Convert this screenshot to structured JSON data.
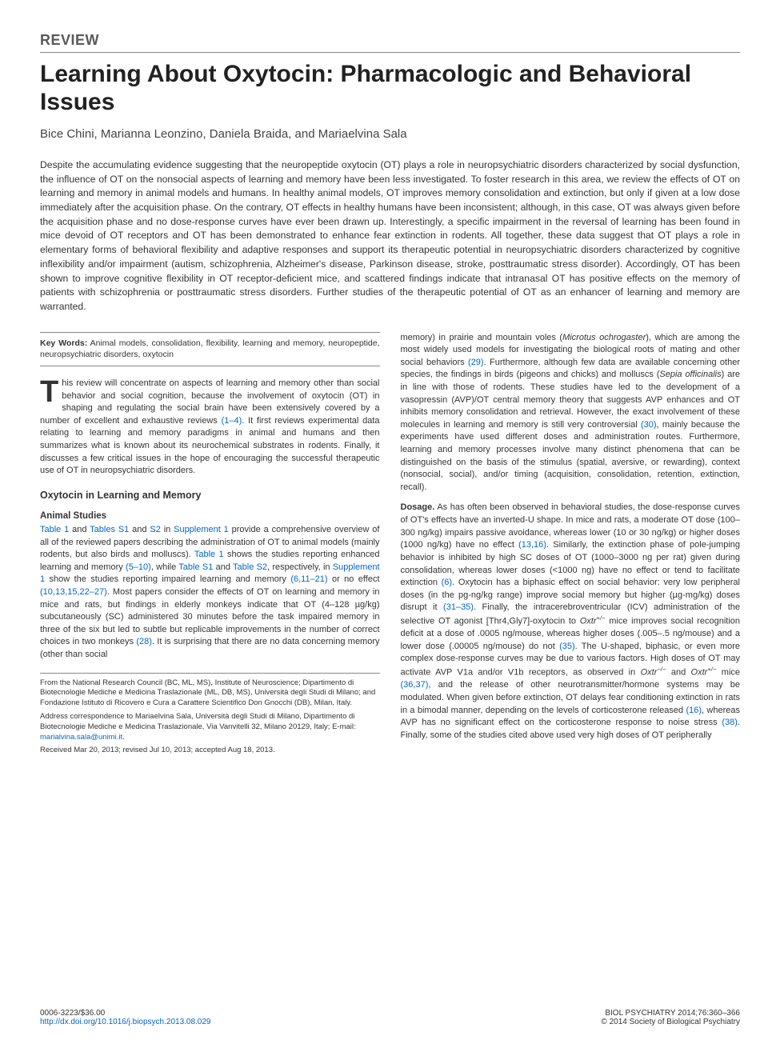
{
  "article_type": "Review",
  "title": "Learning About Oxytocin: Pharmacologic and Behavioral Issues",
  "authors": "Bice Chini, Marianna Leonzino, Daniela Braida, and Mariaelvina Sala",
  "abstract": "Despite the accumulating evidence suggesting that the neuropeptide oxytocin (OT) plays a role in neuropsychiatric disorders characterized by social dysfunction, the influence of OT on the nonsocial aspects of learning and memory have been less investigated. To foster research in this area, we review the effects of OT on learning and memory in animal models and humans. In healthy animal models, OT improves memory consolidation and extinction, but only if given at a low dose immediately after the acquisition phase. On the contrary, OT effects in healthy humans have been inconsistent; although, in this case, OT was always given before the acquisition phase and no dose-response curves have ever been drawn up. Interestingly, a specific impairment in the reversal of learning has been found in mice devoid of OT receptors and OT has been demonstrated to enhance fear extinction in rodents. All together, these data suggest that OT plays a role in elementary forms of behavioral flexibility and adaptive responses and support its therapeutic potential in neuropsychiatric disorders characterized by cognitive inflexibility and/or impairment (autism, schizophrenia, Alzheimer's disease, Parkinson disease, stroke, posttraumatic stress disorder). Accordingly, OT has been shown to improve cognitive flexibility in OT receptor-deficient mice, and scattered findings indicate that intranasal OT has positive effects on the memory of patients with schizophrenia or posttraumatic stress disorders. Further studies of the therapeutic potential of OT as an enhancer of learning and memory are warranted.",
  "keywords_label": "Key Words:",
  "keywords": "Animal models, consolidation, flexibility, learning and memory, neuropeptide, neuropsychiatric disorders, oxytocin",
  "col1": {
    "intro_first": "T",
    "intro_rest": "his review will concentrate on aspects of learning and memory other than social behavior and social cognition, because the involvement of oxytocin (OT) in shaping and regulating the social brain have been extensively covered by a number of excellent and exhaustive reviews ",
    "intro_ref1": "(1–4)",
    "intro_tail": ". It first reviews experimental data relating to learning and memory paradigms in animal and humans and then summarizes what is known about its neurochemical substrates in rodents. Finally, it discusses a few critical issues in the hope of encouraging the successful therapeutic use of OT in neuropsychiatric disorders.",
    "h1": "Oxytocin in Learning and Memory",
    "h2": "Animal Studies",
    "p2a": "Table 1",
    "p2b": " and ",
    "p2c": "Tables S1",
    "p2d": " and ",
    "p2e": "S2",
    "p2f": " in ",
    "p2g": "Supplement 1",
    "p2h": " provide a comprehensive overview of all of the reviewed papers describing the administration of OT to animal models (mainly rodents, but also birds and molluscs). ",
    "p2i": "Table 1",
    "p2j": " shows the studies reporting enhanced learning and memory ",
    "p2k": "(5–10)",
    "p2l": ", while ",
    "p2m": "Table S1",
    "p2n": " and ",
    "p2o": "Table S2",
    "p2p": ", respectively, in ",
    "p2q": "Supplement 1",
    "p2r": " show the studies reporting impaired learning and memory ",
    "p2s": "(6,11–21)",
    "p2t": " or no effect ",
    "p2u": "(10,13,15,22–27)",
    "p2v": ". Most papers consider the effects of OT on learning and memory in mice and rats, but findings in elderly monkeys indicate that OT (4–128 µg/kg) subcutaneously (SC) administered 30 minutes before the task impaired memory in three of the six but led to subtle but replicable improvements in the number of correct choices in two monkeys ",
    "p2w": "(28)",
    "p2x": ". It is surprising that there are no data concerning memory (other than social",
    "affil1": "From the National Research Council (BC, ML, MS), Institute of Neuroscience; Dipartimento di Biotecnologie Mediche e Medicina Traslazionale (ML, DB, MS), Università degli Studi di Milano; and Fondazione Istituto di Ricovero e Cura a Carattere Scientifico Don Gnocchi (DB), Milan, Italy.",
    "affil2a": "Address correspondence to Mariaelvina Sala, Università degli Studi di Milano, Dipartimento di Biotecnologie Mediche e Medicina Traslazionale, Via Vanvitelli 32, Milano 20129, Italy; E-mail: ",
    "affil2b": "marialvina.sala@unimi.it",
    "affil2c": ".",
    "affil3": "Received Mar 20, 2013; revised Jul 10, 2013; accepted Aug 18, 2013."
  },
  "col2": {
    "p1a": "memory) in prairie and mountain voles (",
    "p1b": "Microtus ochrogaster",
    "p1c": "), which are among the most widely used models for investigating the biological roots of mating and other social behaviors ",
    "p1d": "(29)",
    "p1e": ". Furthermore, although few data are available concerning other species, the findings in birds (pigeons and chicks) and molluscs (",
    "p1f": "Sepia officinalis",
    "p1g": ") are in line with those of rodents. These studies have led to the development of a vasopressin (AVP)/OT central memory theory that suggests AVP enhances and OT inhibits memory consolidation and retrieval. However, the exact involvement of these molecules in learning and memory is still very controversial ",
    "p1h": "(30)",
    "p1i": ", mainly because the experiments have used different doses and administration routes. Furthermore, learning and memory processes involve many distinct phenomena that can be distinguished on the basis of the stimulus (spatial, aversive, or rewarding), context (nonsocial, social), and/or timing (acquisition, consolidation, retention, extinction, recall).",
    "runin": "Dosage.",
    "p2a": " As has often been observed in behavioral studies, the dose-response curves of OT's effects have an inverted-U shape. In mice and rats, a moderate OT dose (100–300 ng/kg) impairs passive avoidance, whereas lower (10 or 30 ng/kg) or higher doses (1000 ng/kg) have no effect ",
    "p2b": "(13,16)",
    "p2c": ". Similarly, the extinction phase of pole-jumping behavior is inhibited by high SC doses of OT (1000–3000 ng per rat) given during consolidation, whereas lower doses (<1000 ng) have no effect or tend to facilitate extinction ",
    "p2d": "(6)",
    "p2e": ". Oxytocin has a biphasic effect on social behavior: very low peripheral doses (in the pg-ng/kg range) improve social memory but higher (µg-mg/kg) doses disrupt it ",
    "p2f": "(31–35)",
    "p2g": ". Finally, the intracerebroventricular (ICV) administration of the selective OT agonist [Thr4,Gly7]-oxytocin to ",
    "p2h": "Oxtr",
    "p2h2": "+/−",
    "p2i": " mice improves social recognition deficit at a dose of .0005 ng/mouse, whereas higher doses (.005–.5 ng/mouse) and a lower dose (.00005 ng/mouse) do not ",
    "p2j": "(35)",
    "p2k": ". The U-shaped, biphasic, or even more complex dose-response curves may be due to various factors. High doses of OT may activate AVP V1a and/or V1b receptors, as observed in ",
    "p2l": "Oxtr",
    "p2l2": "−/−",
    "p2m": " and ",
    "p2n": "Oxtr",
    "p2n2": "+/−",
    "p2o": " mice ",
    "p2p": "(36,37)",
    "p2q": ", and the release of other neurotransmitter/hormone systems may be modulated. When given before extinction, OT delays fear conditioning extinction in rats in a bimodal manner, depending on the levels of corticosterone released ",
    "p2r": "(16)",
    "p2s": ", whereas AVP has no significant effect on the corticosterone response to noise stress ",
    "p2t": "(38)",
    "p2u": ". Finally, some of the studies cited above used very high doses of OT peripherally"
  },
  "footer": {
    "left1": "0006-3223/$36.00",
    "left2": "http://dx.doi.org/10.1016/j.biopsych.2013.08.029",
    "right1": "BIOL PSYCHIATRY 2014;76:360–366",
    "right2": "© 2014 Society of Biological Psychiatry"
  },
  "colors": {
    "link": "#0066cc",
    "text": "#333333",
    "heading": "#222222",
    "rule": "#888888"
  }
}
